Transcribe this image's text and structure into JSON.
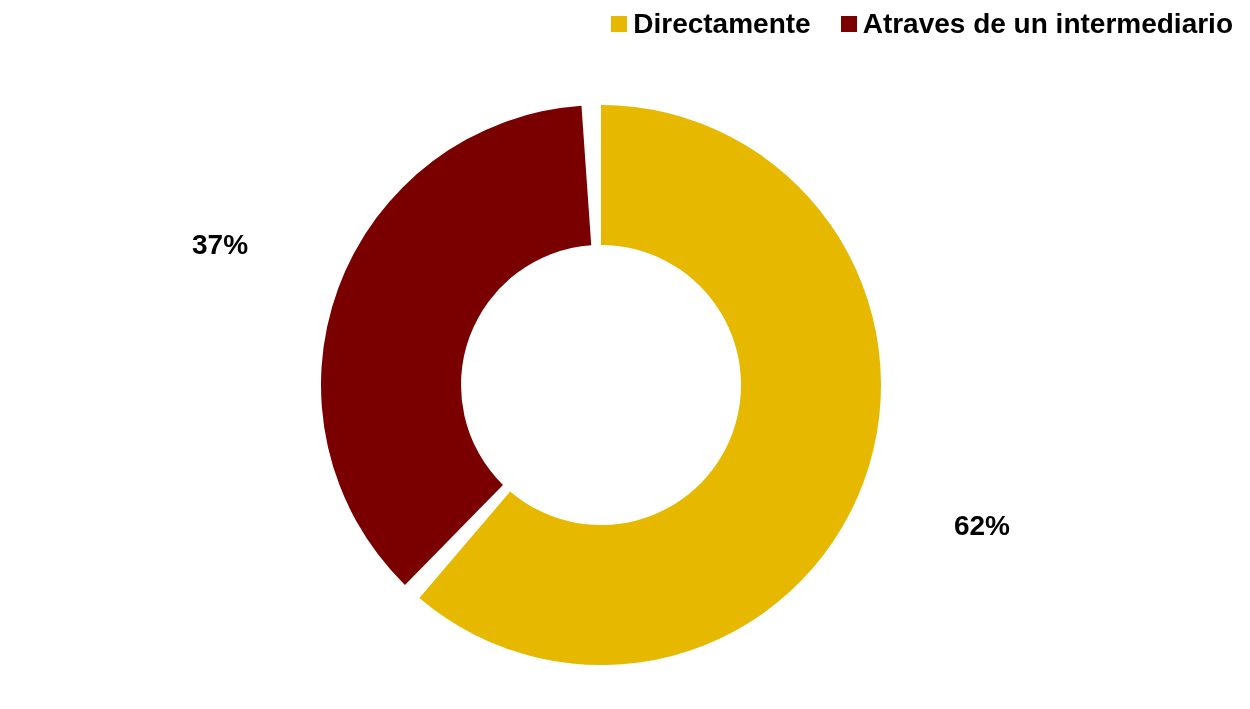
{
  "chart_data": {
    "type": "donut",
    "categories": [
      "Directamente",
      "Atraves de un intermediario"
    ],
    "values": [
      62,
      37
    ],
    "colors": [
      "#e6b800",
      "#7a0000"
    ],
    "value_labels": [
      "62%",
      "37%"
    ],
    "legend": "top right"
  }
}
